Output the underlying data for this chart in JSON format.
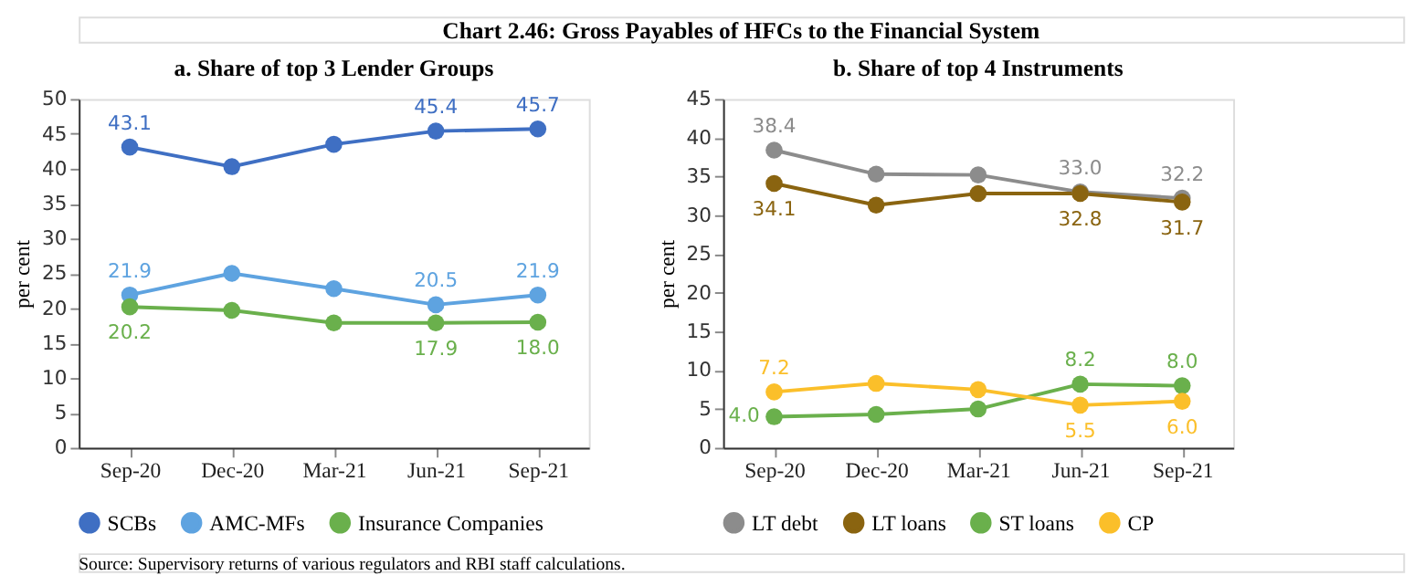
{
  "chart_data": [
    {
      "type": "line",
      "title": "a. Share of top 3 Lender Groups",
      "ylabel": "per cent",
      "categories": [
        "Sep-20",
        "Dec-20",
        "Mar-21",
        "Jun-21",
        "Sep-21"
      ],
      "ylim": [
        0,
        50
      ],
      "yticks": [
        0,
        5,
        10,
        15,
        20,
        25,
        30,
        35,
        40,
        45,
        50
      ],
      "marker": "circle",
      "legend": "bottom",
      "grid": false,
      "annotations": [
        "Chart 2.46: Gross Payables of HFCs to the Financial System",
        "Source: Supervisory returns of various regulators and RBI staff calculations."
      ],
      "series": [
        {
          "name": "SCBs",
          "color": "#3f6fc3",
          "values": [
            43.1,
            40.3,
            43.5,
            45.4,
            45.7
          ],
          "value_labels": [
            "43.1",
            null,
            null,
            "45.4",
            "45.7"
          ]
        },
        {
          "name": "AMC-MFs",
          "color": "#5ea3e0",
          "values": [
            21.9,
            25.0,
            22.8,
            20.5,
            21.9
          ],
          "value_labels": [
            "21.9",
            null,
            null,
            "20.5",
            "21.9"
          ]
        },
        {
          "name": "Insurance Companies",
          "color": "#6ab04c",
          "values": [
            20.2,
            19.7,
            17.9,
            17.9,
            18.0
          ],
          "value_labels": [
            "20.2",
            null,
            null,
            "17.9",
            "18.0"
          ]
        }
      ]
    },
    {
      "type": "line",
      "title": "b. Share of top 4 Instruments",
      "ylabel": "per cent",
      "categories": [
        "Sep-20",
        "Dec-20",
        "Mar-21",
        "Jun-21",
        "Sep-21"
      ],
      "ylim": [
        0,
        45
      ],
      "yticks": [
        0,
        5,
        10,
        15,
        20,
        25,
        30,
        35,
        40,
        45
      ],
      "marker": "circle",
      "legend": "bottom",
      "grid": false,
      "series": [
        {
          "name": "LT debt",
          "color": "#8c8c8c",
          "values": [
            38.4,
            35.3,
            35.2,
            33.0,
            32.2
          ],
          "value_labels": [
            "38.4",
            null,
            null,
            "33.0",
            "32.2"
          ]
        },
        {
          "name": "LT loans",
          "color": "#8a6410",
          "values": [
            34.1,
            31.3,
            32.8,
            32.8,
            31.7
          ],
          "value_labels": [
            "34.1",
            null,
            null,
            "32.8",
            "31.7"
          ]
        },
        {
          "name": "ST loans",
          "color": "#6ab04c",
          "values": [
            4.0,
            4.3,
            5.0,
            8.2,
            8.0
          ],
          "value_labels": [
            "4.0",
            null,
            null,
            "8.2",
            "8.0"
          ]
        },
        {
          "name": "CP",
          "color": "#fbbf2a",
          "values": [
            7.2,
            8.3,
            7.5,
            5.5,
            6.0
          ],
          "value_labels": [
            "7.2",
            null,
            null,
            "5.5",
            "6.0"
          ]
        }
      ]
    }
  ]
}
